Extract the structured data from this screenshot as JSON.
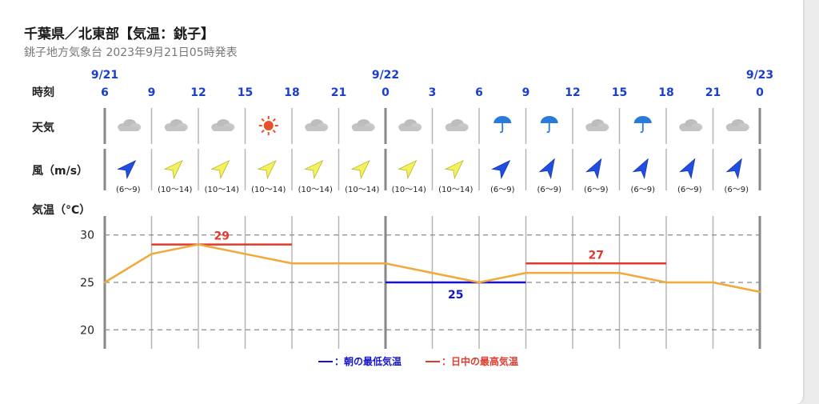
{
  "header": {
    "title": "千葉県／北東部【気温：銚子】",
    "subtitle": "銚子地方気象台 2023年9月21日05時発表"
  },
  "rows": {
    "time_label": "時刻",
    "weather_label": "天気",
    "wind_label": "風（m/s）",
    "temp_label": "気温（°C）"
  },
  "colors": {
    "temp_line": "#f0a93a",
    "min_line": "#1414cc",
    "max_line": "#e03a2e",
    "hour_text": "#1a3fcc",
    "grid": "#9e9e9e",
    "wind_yellow": "#f4f25c",
    "wind_blue": "#1f4fe0",
    "sun": "#e8502a",
    "umbrella": "#2a7ad8"
  },
  "chart_data": {
    "type": "line",
    "x": [
      "6",
      "9",
      "12",
      "15",
      "18",
      "21",
      "0",
      "3",
      "6",
      "9",
      "12",
      "15",
      "18",
      "21",
      "0"
    ],
    "dates": [
      {
        "index": 0,
        "label": "9/21"
      },
      {
        "index": 6,
        "label": "9/22"
      },
      {
        "index": 14,
        "label": "9/23"
      }
    ],
    "weather": [
      "cloudy-icon",
      "cloudy-icon",
      "cloudy-icon",
      "sunny-icon",
      "cloudy-icon",
      "cloudy-icon",
      "cloudy-icon",
      "cloudy-icon",
      "rain-icon",
      "rain-icon",
      "cloudy-icon",
      "rain-icon",
      "cloudy-icon",
      "cloudy-icon"
    ],
    "wind": [
      {
        "speed": "(6～9)",
        "color": "blue",
        "dir": "SW"
      },
      {
        "speed": "(10～14)",
        "color": "yellow",
        "dir": "SW"
      },
      {
        "speed": "(10～14)",
        "color": "yellow",
        "dir": "SW"
      },
      {
        "speed": "(10～14)",
        "color": "yellow",
        "dir": "SW"
      },
      {
        "speed": "(10～14)",
        "color": "yellow",
        "dir": "SW"
      },
      {
        "speed": "(10～14)",
        "color": "yellow",
        "dir": "SW"
      },
      {
        "speed": "(10～14)",
        "color": "yellow",
        "dir": "SW"
      },
      {
        "speed": "(10～14)",
        "color": "yellow",
        "dir": "SW"
      },
      {
        "speed": "(6～9)",
        "color": "blue",
        "dir": "SW"
      },
      {
        "speed": "(6～9)",
        "color": "blue",
        "dir": "WSW"
      },
      {
        "speed": "(6～9)",
        "color": "blue",
        "dir": "WSW"
      },
      {
        "speed": "(6～9)",
        "color": "blue",
        "dir": "WSW"
      },
      {
        "speed": "(6～9)",
        "color": "blue",
        "dir": "WSW"
      },
      {
        "speed": "(6～9)",
        "color": "blue",
        "dir": "WSW"
      }
    ],
    "temperature": [
      25,
      28,
      29,
      28,
      27,
      27,
      27,
      26,
      25,
      26,
      26,
      26,
      25,
      25,
      24
    ],
    "ylim": [
      18,
      32
    ],
    "yticks": [
      20,
      25,
      30
    ],
    "max_lines": [
      {
        "value": 29,
        "label": "29",
        "from": 1,
        "to": 4
      },
      {
        "value": 27,
        "label": "27",
        "from": 9,
        "to": 12
      }
    ],
    "min_lines": [
      {
        "value": 25,
        "label": "25",
        "from": 6,
        "to": 9
      }
    ],
    "legend": [
      {
        "key": "min",
        "label": "：朝の最低気温"
      },
      {
        "key": "max",
        "label": "：日中の最高気温"
      }
    ]
  }
}
